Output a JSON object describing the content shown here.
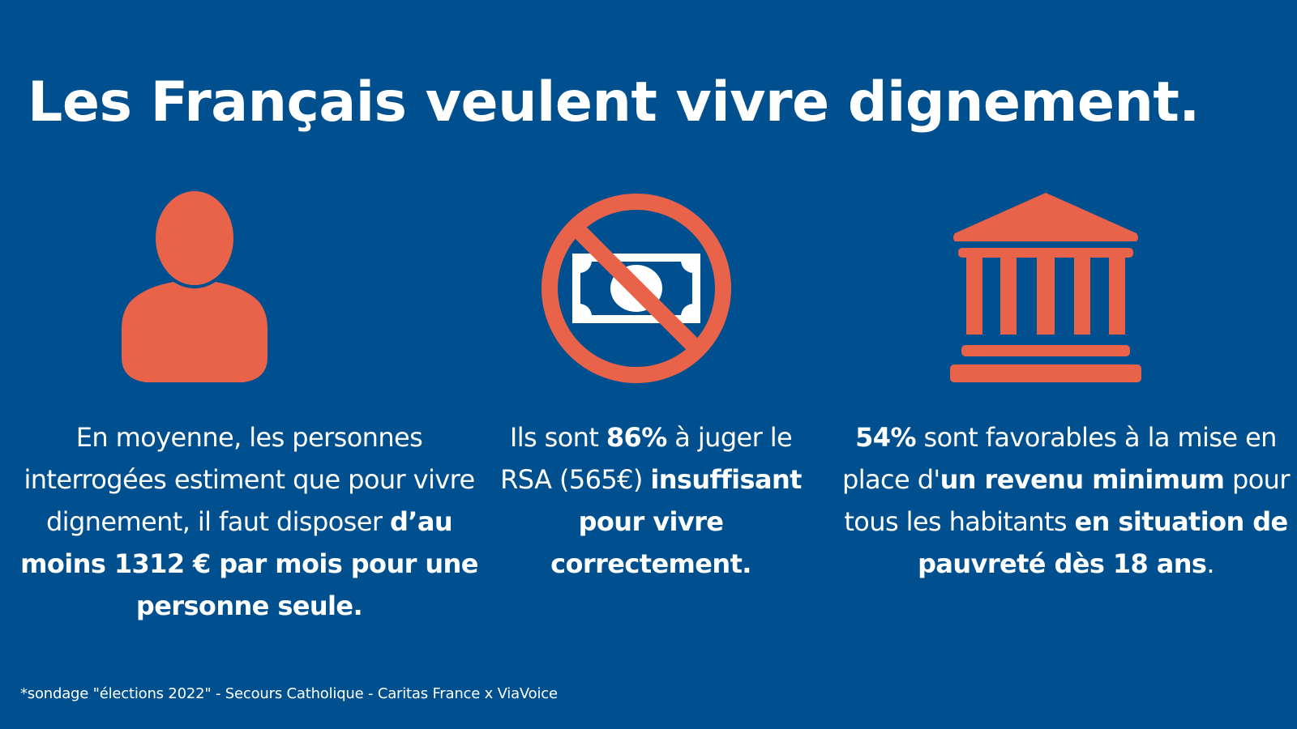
{
  "title": "Les Français veulent vivre dignement.",
  "colors": {
    "background": "#00508f",
    "accent": "#e8634a",
    "text": "#ffffff"
  },
  "icons": [
    "person-icon",
    "no-money-icon",
    "bank-building-icon"
  ],
  "blocks": [
    {
      "parts": [
        {
          "text": "En moyenne, les personnes interrogées estiment que pour vivre dignement, il faut disposer ",
          "bold": false
        },
        {
          "text": "d’au moins 1312 € par mois pour une personne seule.",
          "bold": true
        }
      ]
    },
    {
      "parts": [
        {
          "text": "Ils sont ",
          "bold": false
        },
        {
          "text": "86%",
          "bold": true
        },
        {
          "text": " à juger le RSA (565€) ",
          "bold": false
        },
        {
          "text": "insuffisant pour vivre correctement.",
          "bold": true
        }
      ]
    },
    {
      "parts": [
        {
          "text": "54%",
          "bold": true
        },
        {
          "text": " sont favorables à la mise en place d'",
          "bold": false
        },
        {
          "text": "un revenu minimum",
          "bold": true
        },
        {
          "text": " pour tous les habitants ",
          "bold": false
        },
        {
          "text": "en situation de pauvreté dès 18 ans",
          "bold": true
        },
        {
          "text": ".",
          "bold": false
        }
      ]
    }
  ],
  "source": "*sondage \"élections 2022\" - Secours Catholique - Caritas France x ViaVoice"
}
